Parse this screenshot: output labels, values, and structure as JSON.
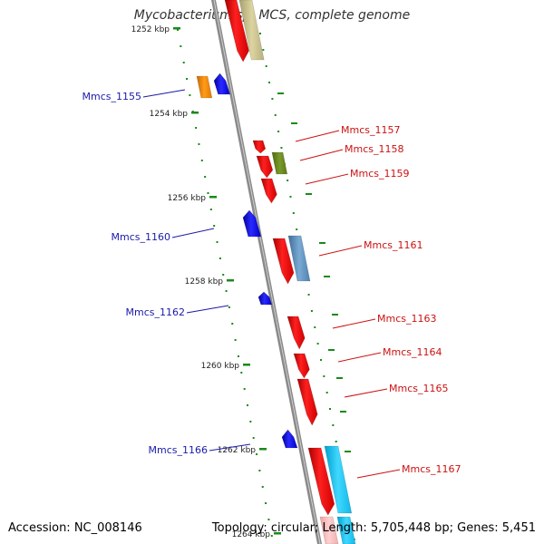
{
  "title": "Mycobacterium sp. MCS, complete genome",
  "accession_text": "Accession: NC_008146",
  "topology_text": "Topology: circular; Length: 5,705,448 bp; Genes: 5,451",
  "colors": {
    "backbone": "#888888",
    "dots": "#1a8a1a",
    "label_blue": "#1a1aaa",
    "label_red": "#cc1111",
    "tick_text": "#222222"
  },
  "ticks": [
    {
      "label": "1252 kbp"
    },
    {
      "label": "1254 kbp"
    },
    {
      "label": "1256 kbp"
    },
    {
      "label": "1258 kbp"
    },
    {
      "label": "1260 kbp"
    },
    {
      "label": "1262 kbp"
    },
    {
      "label": "1264 kbp"
    }
  ],
  "genes": [
    {
      "name": "Mmcs_1155",
      "strand": "minus"
    },
    {
      "name": "Mmcs_1157",
      "strand": "plus"
    },
    {
      "name": "Mmcs_1158",
      "strand": "plus"
    },
    {
      "name": "Mmcs_1159",
      "strand": "plus"
    },
    {
      "name": "Mmcs_1160",
      "strand": "minus"
    },
    {
      "name": "Mmcs_1161",
      "strand": "plus"
    },
    {
      "name": "Mmcs_1162",
      "strand": "minus"
    },
    {
      "name": "Mmcs_1163",
      "strand": "plus"
    },
    {
      "name": "Mmcs_1164",
      "strand": "plus"
    },
    {
      "name": "Mmcs_1165",
      "strand": "plus"
    },
    {
      "name": "Mmcs_1166",
      "strand": "minus"
    },
    {
      "name": "Mmcs_1167",
      "strand": "plus"
    }
  ]
}
